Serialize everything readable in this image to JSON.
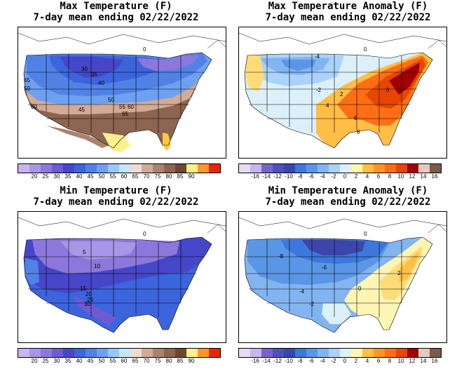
{
  "panels": [
    {
      "title1": "Max Temperature (F)",
      "title2": "7-day mean ending 02/22/2022",
      "scale": "temp",
      "ticks": [
        "20",
        "25",
        "30",
        "35",
        "40",
        "45",
        "50",
        "55",
        "60",
        "65",
        "70",
        "75",
        "80",
        "85",
        "90"
      ],
      "contour_labels": [
        "30",
        "35",
        "40",
        "45",
        "50",
        "60",
        "60",
        "55",
        "45",
        "65",
        "50",
        "0"
      ]
    },
    {
      "title1": "Max Temperature Anomaly (F)",
      "title2": "7-day mean ending 02/22/2022",
      "scale": "anom",
      "ticks": [
        "-16",
        "-14",
        "-12",
        "-10",
        "-8",
        "-6",
        "-4",
        "-2",
        "0",
        "2",
        "4",
        "6",
        "8",
        "10",
        "12",
        "14",
        "16"
      ],
      "contour_labels": [
        "-4",
        "0",
        "-2",
        "2",
        "4",
        "6",
        "8",
        "0"
      ]
    },
    {
      "title1": "Min Temperature (F)",
      "title2": "7-day mean ending 02/22/2022",
      "scale": "temp",
      "ticks": [
        "20",
        "25",
        "30",
        "35",
        "40",
        "45",
        "50",
        "55",
        "60",
        "65",
        "70",
        "75",
        "80",
        "85",
        "90"
      ],
      "contour_labels": [
        "5",
        "10",
        "15",
        "20",
        "25",
        "30",
        "0"
      ]
    },
    {
      "title1": "Min Temperature Anomaly (F)",
      "title2": "7-day mean ending 02/22/2022",
      "scale": "anom",
      "ticks": [
        "-16",
        "-14",
        "-12",
        "-10",
        "-8",
        "-6",
        "-4",
        "-2",
        "0",
        "2",
        "4",
        "6",
        "8",
        "10",
        "12",
        "14",
        "16"
      ],
      "contour_labels": [
        "-8",
        "-6",
        "-4",
        "-2",
        "0",
        "2",
        "0"
      ]
    }
  ],
  "colors": {
    "temp": [
      "#c8b4f0",
      "#a896e6",
      "#8c78dc",
      "#6e5ad2",
      "#4646c8",
      "#3c64dc",
      "#5082e6",
      "#6ea0f0",
      "#96c8fa",
      "#c8e6fa",
      "#f0dcd2",
      "#d2aa96",
      "#aa8270",
      "#8c6450",
      "#6e4632",
      "#fff08c",
      "#ffc83c",
      "#ff9628",
      "#ff6414",
      "#e62800",
      "#b40000"
    ],
    "anom": [
      "#e6dcf5",
      "#c8b4f0",
      "#a08cdc",
      "#7864c8",
      "#5050be",
      "#3c46aa",
      "#3c78dc",
      "#5a96e6",
      "#82b4f0",
      "#aad2fa",
      "#dcf0fa",
      "#fff5b4",
      "#ffdc78",
      "#ffbe46",
      "#ff9628",
      "#ff6e14",
      "#e64600",
      "#c81e00",
      "#a00000",
      "#e6c8be",
      "#b48c78",
      "#7a5a4a"
    ]
  }
}
